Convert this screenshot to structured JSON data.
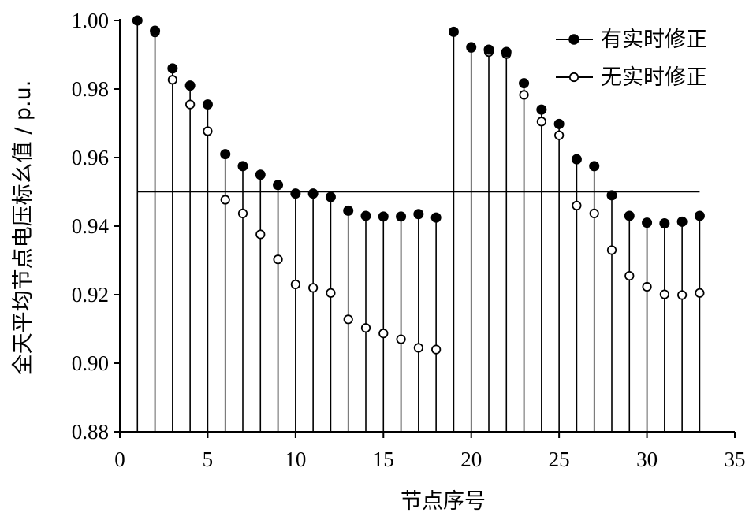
{
  "chart_data": {
    "type": "scatter",
    "xlabel": "节点序号",
    "ylabel": "全天平均节点电压标幺值 / p.u.",
    "xlim": [
      0,
      35
    ],
    "ylim": [
      0.88,
      1.0
    ],
    "x_ticks": [
      0,
      5,
      10,
      15,
      20,
      25,
      30,
      35
    ],
    "y_ticks": [
      0.88,
      0.9,
      0.92,
      0.94,
      0.96,
      0.98,
      1.0
    ],
    "x_tick_labels": [
      "0",
      "5",
      "10",
      "15",
      "20",
      "25",
      "30",
      "35"
    ],
    "y_tick_labels": [
      "0.88",
      "0.90",
      "0.92",
      "0.94",
      "0.96",
      "0.98",
      "1.00"
    ],
    "reference_line": 0.95,
    "legend_position": "top-right",
    "x": [
      1,
      2,
      3,
      4,
      5,
      6,
      7,
      8,
      9,
      10,
      11,
      12,
      13,
      14,
      15,
      16,
      17,
      18,
      19,
      20,
      21,
      22,
      23,
      24,
      25,
      26,
      27,
      28,
      29,
      30,
      31,
      32,
      33
    ],
    "series": [
      {
        "name": "有实时修正",
        "marker": "filled-circle",
        "color": "#000000",
        "values": [
          1.0,
          0.997,
          0.986,
          0.981,
          0.9755,
          0.961,
          0.9575,
          0.955,
          0.952,
          0.9495,
          0.9495,
          0.9485,
          0.9445,
          0.943,
          0.9428,
          0.9428,
          0.9435,
          0.9425,
          0.9967,
          0.9922,
          0.9915,
          0.9908,
          0.9817,
          0.974,
          0.9698,
          0.9595,
          0.9575,
          0.949,
          0.943,
          0.941,
          0.9408,
          0.9413,
          0.943
        ]
      },
      {
        "name": "无实时修正",
        "marker": "open-circle",
        "color": "#000000",
        "values": [
          1.0,
          0.9965,
          0.9827,
          0.9755,
          0.9677,
          0.9477,
          0.9437,
          0.9376,
          0.9303,
          0.923,
          0.922,
          0.9205,
          0.9128,
          0.9103,
          0.9087,
          0.907,
          0.9045,
          0.904,
          0.9967,
          0.992,
          0.9908,
          0.9902,
          0.9783,
          0.9705,
          0.9665,
          0.946,
          0.9437,
          0.933,
          0.9255,
          0.9223,
          0.9201,
          0.9199,
          0.9205
        ]
      }
    ]
  }
}
